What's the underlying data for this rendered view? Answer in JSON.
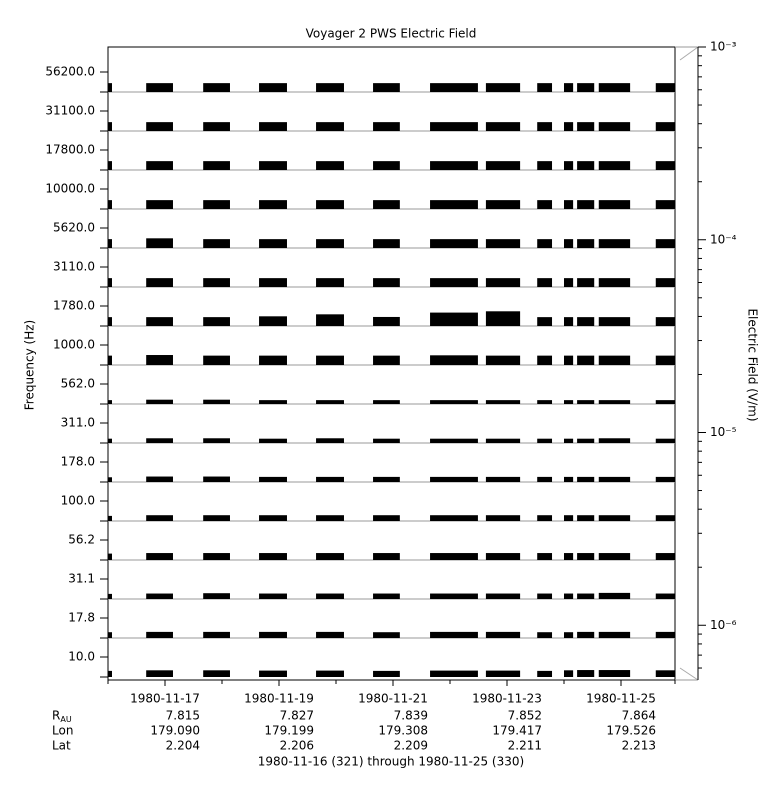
{
  "chart_data": {
    "type": "bar",
    "title": "Voyager 2 PWS Electric Field",
    "ylabel": "Frequency (Hz)",
    "y2label": "Electric Field (V/m)",
    "xlabel": "1980-11-16 (321) through 1980-11-25 (330)",
    "color": "#000000",
    "xlim": [
      321,
      331
    ],
    "xticks": [
      {
        "value": 322,
        "label": "1980-11-17"
      },
      {
        "value": 324,
        "label": "1980-11-19"
      },
      {
        "value": 326,
        "label": "1980-11-21"
      },
      {
        "value": 328,
        "label": "1980-11-23"
      },
      {
        "value": 330,
        "label": "1980-11-25"
      }
    ],
    "xminorticks": [
      321,
      323,
      325,
      327,
      329,
      331
    ],
    "y2lim": [
      5.2e-07,
      0.001
    ],
    "y2log": true,
    "y2ticks": [
      {
        "value": 0.001,
        "label": "10⁻³"
      },
      {
        "value": 0.0001,
        "label": "10⁻⁴"
      },
      {
        "value": 1e-05,
        "label": "10⁻⁵"
      },
      {
        "value": 1e-06,
        "label": "10⁻⁶"
      }
    ],
    "segments": [
      [
        321.0,
        321.07
      ],
      [
        321.67,
        322.14
      ],
      [
        322.67,
        323.14
      ],
      [
        323.65,
        324.14
      ],
      [
        324.65,
        325.14
      ],
      [
        325.65,
        326.12
      ],
      [
        326.65,
        327.49
      ],
      [
        327.63,
        328.23
      ],
      [
        328.53,
        328.79
      ],
      [
        329.0,
        329.16
      ],
      [
        329.23,
        329.53
      ],
      [
        329.61,
        330.16
      ],
      [
        330.61,
        330.95
      ]
    ],
    "series": [
      {
        "name": "56200.0",
        "values": [
          2.9e-06,
          2.9e-06,
          2.9e-06,
          2.9e-06,
          2.9e-06,
          2.9e-06,
          2.9e-06,
          2.9e-06,
          2.9e-06,
          2.9e-06,
          2.9e-06,
          2.9e-06,
          2.9e-06
        ]
      },
      {
        "name": "31100.0",
        "values": [
          2.9e-06,
          2.9e-06,
          2.9e-06,
          2.9e-06,
          2.9e-06,
          2.9e-06,
          2.9e-06,
          2.9e-06,
          2.9e-06,
          2.9e-06,
          2.9e-06,
          2.9e-06,
          2.9e-06
        ]
      },
      {
        "name": "17800.0",
        "values": [
          2.9e-06,
          2.9e-06,
          2.9e-06,
          2.9e-06,
          2.9e-06,
          2.9e-06,
          2.9e-06,
          2.9e-06,
          2.9e-06,
          2.9e-06,
          2.9e-06,
          2.9e-06,
          2.9e-06
        ]
      },
      {
        "name": "10000.0",
        "values": [
          2.9e-06,
          2.9e-06,
          2.9e-06,
          2.9e-06,
          2.9e-06,
          2.9e-06,
          2.9e-06,
          2.9e-06,
          2.9e-06,
          2.9e-06,
          2.9e-06,
          2.9e-06,
          2.9e-06
        ]
      },
      {
        "name": "5620.0",
        "values": [
          2.9e-06,
          3.4e-06,
          2.9e-06,
          2.9e-06,
          2.9e-06,
          2.9e-06,
          2.9e-06,
          2.9e-06,
          2.9e-06,
          2.9e-06,
          2.9e-06,
          2.9e-06,
          2.9e-06
        ]
      },
      {
        "name": "3110.0",
        "values": [
          2.9e-06,
          2.9e-06,
          2.9e-06,
          2.9e-06,
          2.9e-06,
          2.9e-06,
          2.9e-06,
          2.9e-06,
          2.9e-06,
          2.9e-06,
          2.9e-06,
          2.9e-06,
          2.9e-06
        ]
      },
      {
        "name": "1780.0",
        "values": [
          2.9e-06,
          2.9e-06,
          2.9e-06,
          3.4e-06,
          5e-06,
          3e-06,
          7e-06,
          9e-06,
          2.9e-06,
          2.9e-06,
          2.9e-06,
          2.9e-06,
          2.9e-06
        ]
      },
      {
        "name": "1000.0",
        "values": [
          3.2e-06,
          3.6e-06,
          3.2e-06,
          3.2e-06,
          3.2e-06,
          3.2e-06,
          3.4e-06,
          3.2e-06,
          3.2e-06,
          3.2e-06,
          3.2e-06,
          3.2e-06,
          3.2e-06
        ]
      },
      {
        "name": "562.0",
        "values": [
          1.1e-06,
          1.2e-06,
          1.2e-06,
          1.1e-06,
          1.1e-06,
          1.1e-06,
          1.1e-06,
          1.1e-06,
          1.1e-06,
          1.1e-06,
          1.1e-06,
          1.1e-06,
          1.1e-06
        ]
      },
      {
        "name": "311.0",
        "values": [
          1.2e-06,
          1.3e-06,
          1.3e-06,
          1.2e-06,
          1.3e-06,
          1.2e-06,
          1.2e-06,
          1.2e-06,
          1.2e-06,
          1.2e-06,
          1.2e-06,
          1.3e-06,
          1.2e-06
        ]
      },
      {
        "name": "178.0",
        "values": [
          1.3e-06,
          1.5e-06,
          1.5e-06,
          1.4e-06,
          1.4e-06,
          1.4e-06,
          1.4e-06,
          1.4e-06,
          1.4e-06,
          1.4e-06,
          1.4e-06,
          1.4e-06,
          1.4e-06
        ]
      },
      {
        "name": "100.0",
        "values": [
          1.4e-06,
          1.6e-06,
          1.6e-06,
          1.6e-06,
          1.6e-06,
          1.6e-06,
          1.6e-06,
          1.6e-06,
          1.6e-06,
          1.6e-06,
          1.6e-06,
          1.6e-06,
          1.6e-06
        ]
      },
      {
        "name": "56.2",
        "values": [
          1.8e-06,
          2e-06,
          2e-06,
          2e-06,
          2e-06,
          2e-06,
          2e-06,
          2e-06,
          2e-06,
          2e-06,
          2e-06,
          2e-06,
          2e-06
        ]
      },
      {
        "name": "31.1",
        "values": [
          1.4e-06,
          1.5e-06,
          1.6e-06,
          1.5e-06,
          1.5e-06,
          1.5e-06,
          1.5e-06,
          1.5e-06,
          1.5e-06,
          1.5e-06,
          1.5e-06,
          1.7e-06,
          1.5e-06
        ]
      },
      {
        "name": "17.8",
        "values": [
          1.6e-06,
          1.7e-06,
          1.7e-06,
          1.7e-06,
          1.7e-06,
          1.6e-06,
          1.7e-06,
          1.7e-06,
          1.6e-06,
          1.6e-06,
          1.7e-06,
          1.7e-06,
          1.7e-06
        ]
      },
      {
        "name": "10.0",
        "values": [
          1.7e-06,
          1.9e-06,
          1.9e-06,
          1.8e-06,
          1.8e-06,
          1.7e-06,
          1.8e-06,
          1.8e-06,
          1.7e-06,
          1.9e-06,
          2e-06,
          2e-06,
          1.9e-06
        ]
      }
    ],
    "ephemeris": [
      {
        "label": "R",
        "sub": "AU",
        "values": [
          "7.815",
          "7.827",
          "7.839",
          "7.852",
          "7.864"
        ]
      },
      {
        "label": "Lon",
        "values": [
          "179.090",
          "179.199",
          "179.308",
          "179.417",
          "179.526"
        ]
      },
      {
        "label": "Lat",
        "values": [
          "2.204",
          "2.206",
          "2.209",
          "2.211",
          "2.213"
        ]
      }
    ]
  }
}
